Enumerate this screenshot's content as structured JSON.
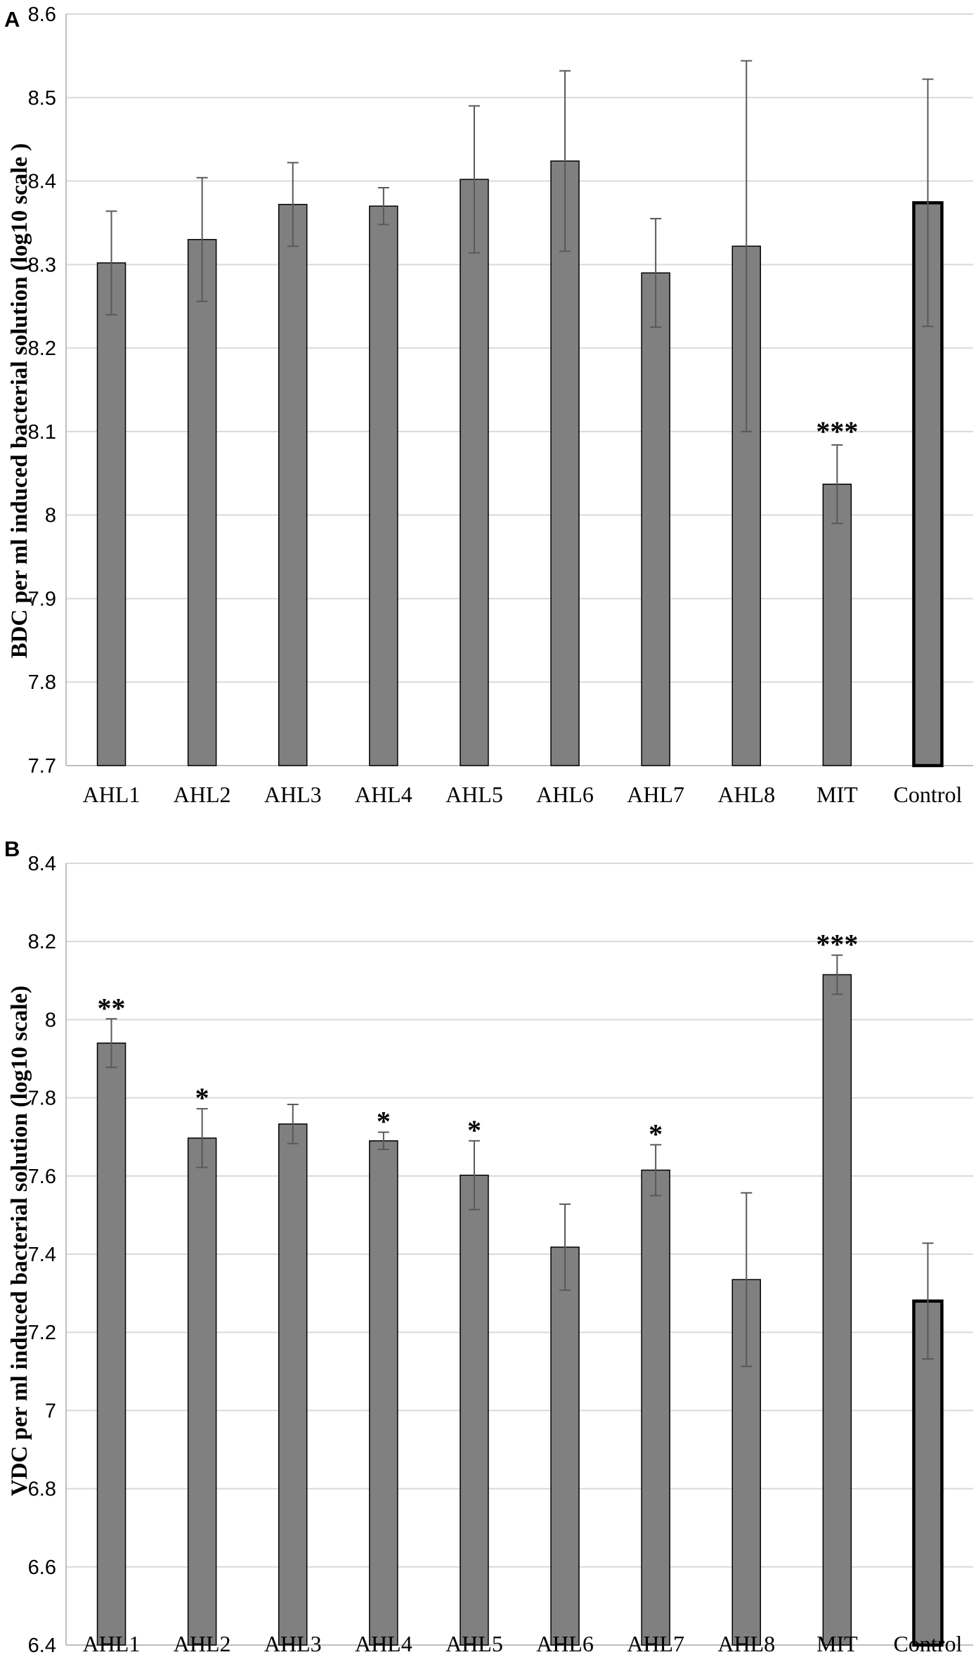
{
  "chart_data": [
    {
      "panel": "A",
      "type": "bar",
      "ylabel": "BDC per ml induced bacterial solution (log10 scale )",
      "xlabel": "",
      "ylim": [
        7.7,
        8.6
      ],
      "yticks": [
        7.7,
        7.8,
        7.9,
        8,
        8.1,
        8.2,
        8.3,
        8.4,
        8.5,
        8.6
      ],
      "ytick_labels": [
        "7.7",
        "7.8",
        "7.9",
        "8",
        "8.1",
        "8.2",
        "8.3",
        "8.4",
        "8.5",
        "8.6"
      ],
      "grid": true,
      "categories": [
        "AHL1",
        "AHL2",
        "AHL3",
        "AHL4",
        "AHL5",
        "AHL6",
        "AHL7",
        "AHL8",
        "MIT",
        "Control"
      ],
      "values": [
        8.302,
        8.33,
        8.372,
        8.37,
        8.402,
        8.424,
        8.29,
        8.322,
        8.037,
        8.374
      ],
      "errors": [
        0.062,
        0.074,
        0.05,
        0.022,
        0.088,
        0.108,
        0.065,
        0.222,
        0.047,
        0.148
      ],
      "significance": [
        "",
        "",
        "",
        "",
        "",
        "",
        "",
        "",
        "***",
        ""
      ]
    },
    {
      "panel": "B",
      "type": "bar",
      "ylabel": "VDC per ml induced bacterial solution (log10 scale)",
      "xlabel": "",
      "ylim": [
        6.4,
        8.4
      ],
      "yticks": [
        6.4,
        6.6,
        6.8,
        7,
        7.2,
        7.4,
        7.6,
        7.8,
        8,
        8.2,
        8.4
      ],
      "ytick_labels": [
        "6.4",
        "6.6",
        "6.8",
        "7",
        "7.2",
        "7.4",
        "7.6",
        "7.8",
        "8",
        "8.2",
        "8.4"
      ],
      "grid": true,
      "categories": [
        "AHL1",
        "AHL2",
        "AHL3",
        "AHL4",
        "AHL5",
        "AHL6",
        "AHL7",
        "AHL8",
        "MIT",
        "Control"
      ],
      "values": [
        7.94,
        7.697,
        7.733,
        7.69,
        7.602,
        7.418,
        7.615,
        7.335,
        8.115,
        7.28
      ],
      "errors": [
        0.062,
        0.075,
        0.05,
        0.022,
        0.088,
        0.11,
        0.065,
        0.222,
        0.05,
        0.148
      ],
      "significance": [
        "**",
        "*",
        "",
        "*",
        "*",
        "",
        "*",
        "",
        "***",
        ""
      ]
    }
  ]
}
